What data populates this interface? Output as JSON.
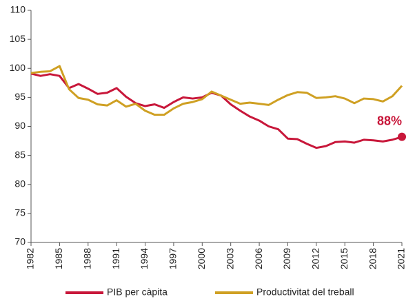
{
  "chart_data": {
    "type": "line",
    "x": [
      1982,
      1983,
      1984,
      1985,
      1986,
      1987,
      1988,
      1989,
      1990,
      1991,
      1992,
      1993,
      1994,
      1995,
      1996,
      1997,
      1998,
      1999,
      2000,
      2001,
      2002,
      2003,
      2004,
      2005,
      2006,
      2007,
      2008,
      2009,
      2010,
      2011,
      2012,
      2013,
      2014,
      2015,
      2016,
      2017,
      2018,
      2019,
      2020,
      2021
    ],
    "series": [
      {
        "name": "PIB per càpita",
        "color": "#c8173a",
        "values": [
          99.1,
          98.7,
          99.0,
          98.7,
          96.6,
          97.3,
          96.5,
          95.6,
          95.8,
          96.6,
          95.1,
          94.0,
          93.5,
          93.8,
          93.2,
          94.2,
          95.0,
          94.8,
          95.0,
          95.8,
          95.3,
          93.8,
          92.7,
          91.7,
          91.0,
          90.0,
          89.5,
          87.9,
          87.8,
          87.0,
          86.3,
          86.6,
          87.3,
          87.4,
          87.2,
          87.7,
          87.6,
          87.4,
          87.7,
          88.2
        ]
      },
      {
        "name": "Productivitat del treball",
        "color": "#cfa023",
        "values": [
          99.2,
          99.4,
          99.5,
          100.4,
          96.4,
          94.9,
          94.6,
          93.8,
          93.6,
          94.5,
          93.4,
          93.9,
          92.7,
          92.0,
          92.0,
          93.1,
          93.9,
          94.2,
          94.7,
          96.0,
          95.3,
          94.6,
          93.9,
          94.1,
          93.9,
          93.7,
          94.6,
          95.4,
          95.9,
          95.8,
          94.9,
          95.0,
          95.2,
          94.8,
          94.0,
          94.8,
          94.7,
          94.3,
          95.2,
          97.0
        ]
      }
    ],
    "annotation": "88%",
    "xlim": [
      1982,
      2021
    ],
    "xticks": [
      1982,
      1985,
      1988,
      1991,
      1994,
      1997,
      2000,
      2003,
      2006,
      2009,
      2012,
      2015,
      2018,
      2021
    ],
    "ylim": [
      70,
      110
    ],
    "yticks": [
      70,
      75,
      80,
      85,
      90,
      95,
      100,
      105,
      110
    ],
    "grid": false
  }
}
